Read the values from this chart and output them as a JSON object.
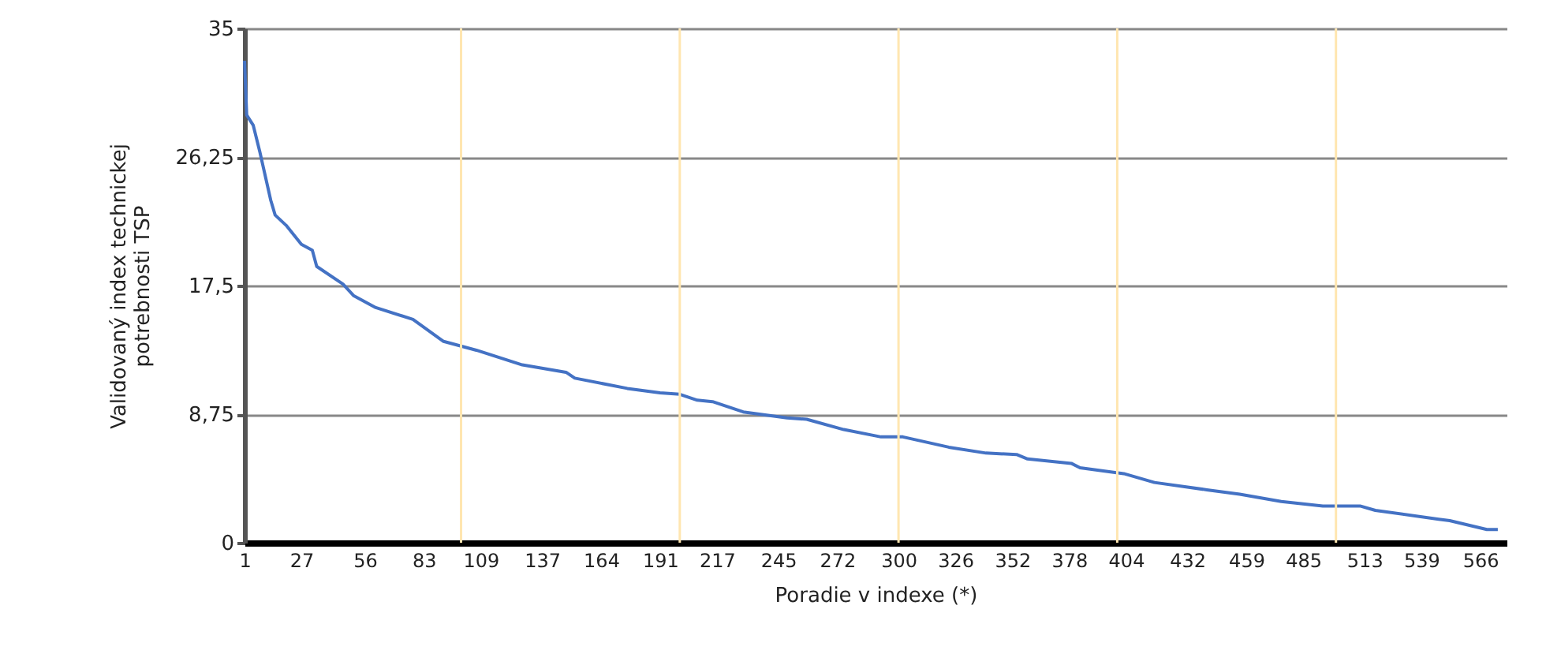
{
  "chart_data": {
    "type": "line",
    "xlabel": "Poradie v indexe (*)",
    "ylabel": "Validovaný index technickej\npotrebnosti TSP",
    "x": [
      1,
      2,
      5,
      8,
      13,
      15,
      20,
      27,
      32,
      34,
      46,
      51,
      61,
      78,
      92,
      107,
      128,
      148,
      152,
      176,
      191,
      200,
      208,
      215,
      229,
      249,
      258,
      275,
      292,
      302,
      323,
      340,
      354,
      359,
      379,
      383,
      393,
      403,
      417,
      441,
      456,
      475,
      494,
      511,
      518,
      547,
      552,
      569,
      574
    ],
    "series": [
      {
        "color": "#4472c4",
        "values": [
          32.8,
          29.1,
          28.4,
          26.6,
          23.3,
          22.3,
          21.6,
          20.3,
          19.9,
          18.8,
          17.6,
          16.8,
          16.0,
          15.2,
          13.7,
          13.1,
          12.1,
          11.6,
          11.2,
          10.5,
          10.2,
          10.1,
          9.7,
          9.6,
          8.9,
          8.5,
          8.4,
          7.7,
          7.2,
          7.2,
          6.5,
          6.1,
          6.0,
          5.7,
          5.4,
          5.1,
          4.9,
          4.7,
          4.1,
          3.6,
          3.3,
          2.8,
          2.5,
          2.5,
          2.2,
          1.6,
          1.5,
          0.9,
          0.9
        ]
      }
    ],
    "xlim": [
      1,
      578
    ],
    "xticks": [
      1,
      27,
      56,
      83,
      109,
      137,
      164,
      191,
      217,
      245,
      272,
      300,
      326,
      352,
      378,
      404,
      432,
      459,
      485,
      513,
      539,
      566
    ],
    "ylim": [
      0,
      35
    ],
    "yticks": [
      0,
      {
        "value": 8.75,
        "label": "8,75"
      },
      {
        "value": 17.5,
        "label": "17,5"
      },
      {
        "value": 26.25,
        "label": "26,25"
      },
      35
    ],
    "grid": "y",
    "ref_lines": [
      {
        "axis": "x",
        "value": 100,
        "color": "#ffe6b0"
      },
      {
        "axis": "x",
        "value": 200,
        "color": "#ffe6b0"
      },
      {
        "axis": "x",
        "value": 300,
        "color": "#ffe6b0"
      },
      {
        "axis": "x",
        "value": 400,
        "color": "#ffe6b0"
      },
      {
        "axis": "x",
        "value": 500,
        "color": "#ffe6b0"
      }
    ],
    "marker": "none",
    "line_style": "solid"
  }
}
